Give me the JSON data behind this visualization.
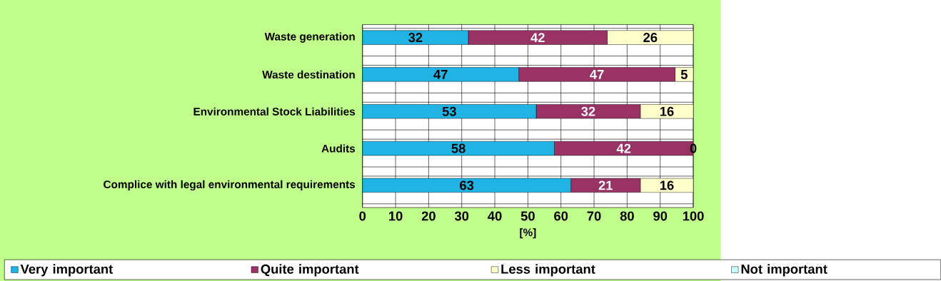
{
  "chart_data": {
    "type": "bar",
    "orientation": "horizontal",
    "stacked": true,
    "categories": [
      "Waste generation",
      "Waste destination",
      "Environmental Stock Liabilities",
      "Audits",
      "Complice with legal environmental requirements"
    ],
    "series": [
      {
        "name": "Very important",
        "color": "#1fb4e4",
        "values": [
          32,
          47.25,
          52.5,
          58,
          63
        ],
        "value_labels": [
          "32",
          "47",
          "53",
          "58",
          "63"
        ]
      },
      {
        "name": "Quite important",
        "color": "#993366",
        "values": [
          42,
          47.25,
          31.5,
          42,
          21
        ],
        "value_labels": [
          "42",
          "47",
          "32",
          "42",
          "21"
        ]
      },
      {
        "name": "Less important",
        "color": "#ffffcc",
        "values": [
          26,
          5.5,
          16,
          0,
          16
        ],
        "value_labels": [
          "26",
          "5",
          "16",
          "0",
          "16"
        ]
      },
      {
        "name": "Not important",
        "color": "#ccffff",
        "values": [
          0,
          0,
          0,
          0,
          0
        ],
        "value_labels": [
          null,
          null,
          null,
          null,
          null
        ]
      }
    ],
    "xlim": [
      0,
      100
    ],
    "xticks": [
      0,
      10,
      20,
      30,
      40,
      50,
      60,
      70,
      80,
      90,
      100
    ],
    "xlabel": "[%]",
    "grid": true,
    "legend": "bottom"
  }
}
